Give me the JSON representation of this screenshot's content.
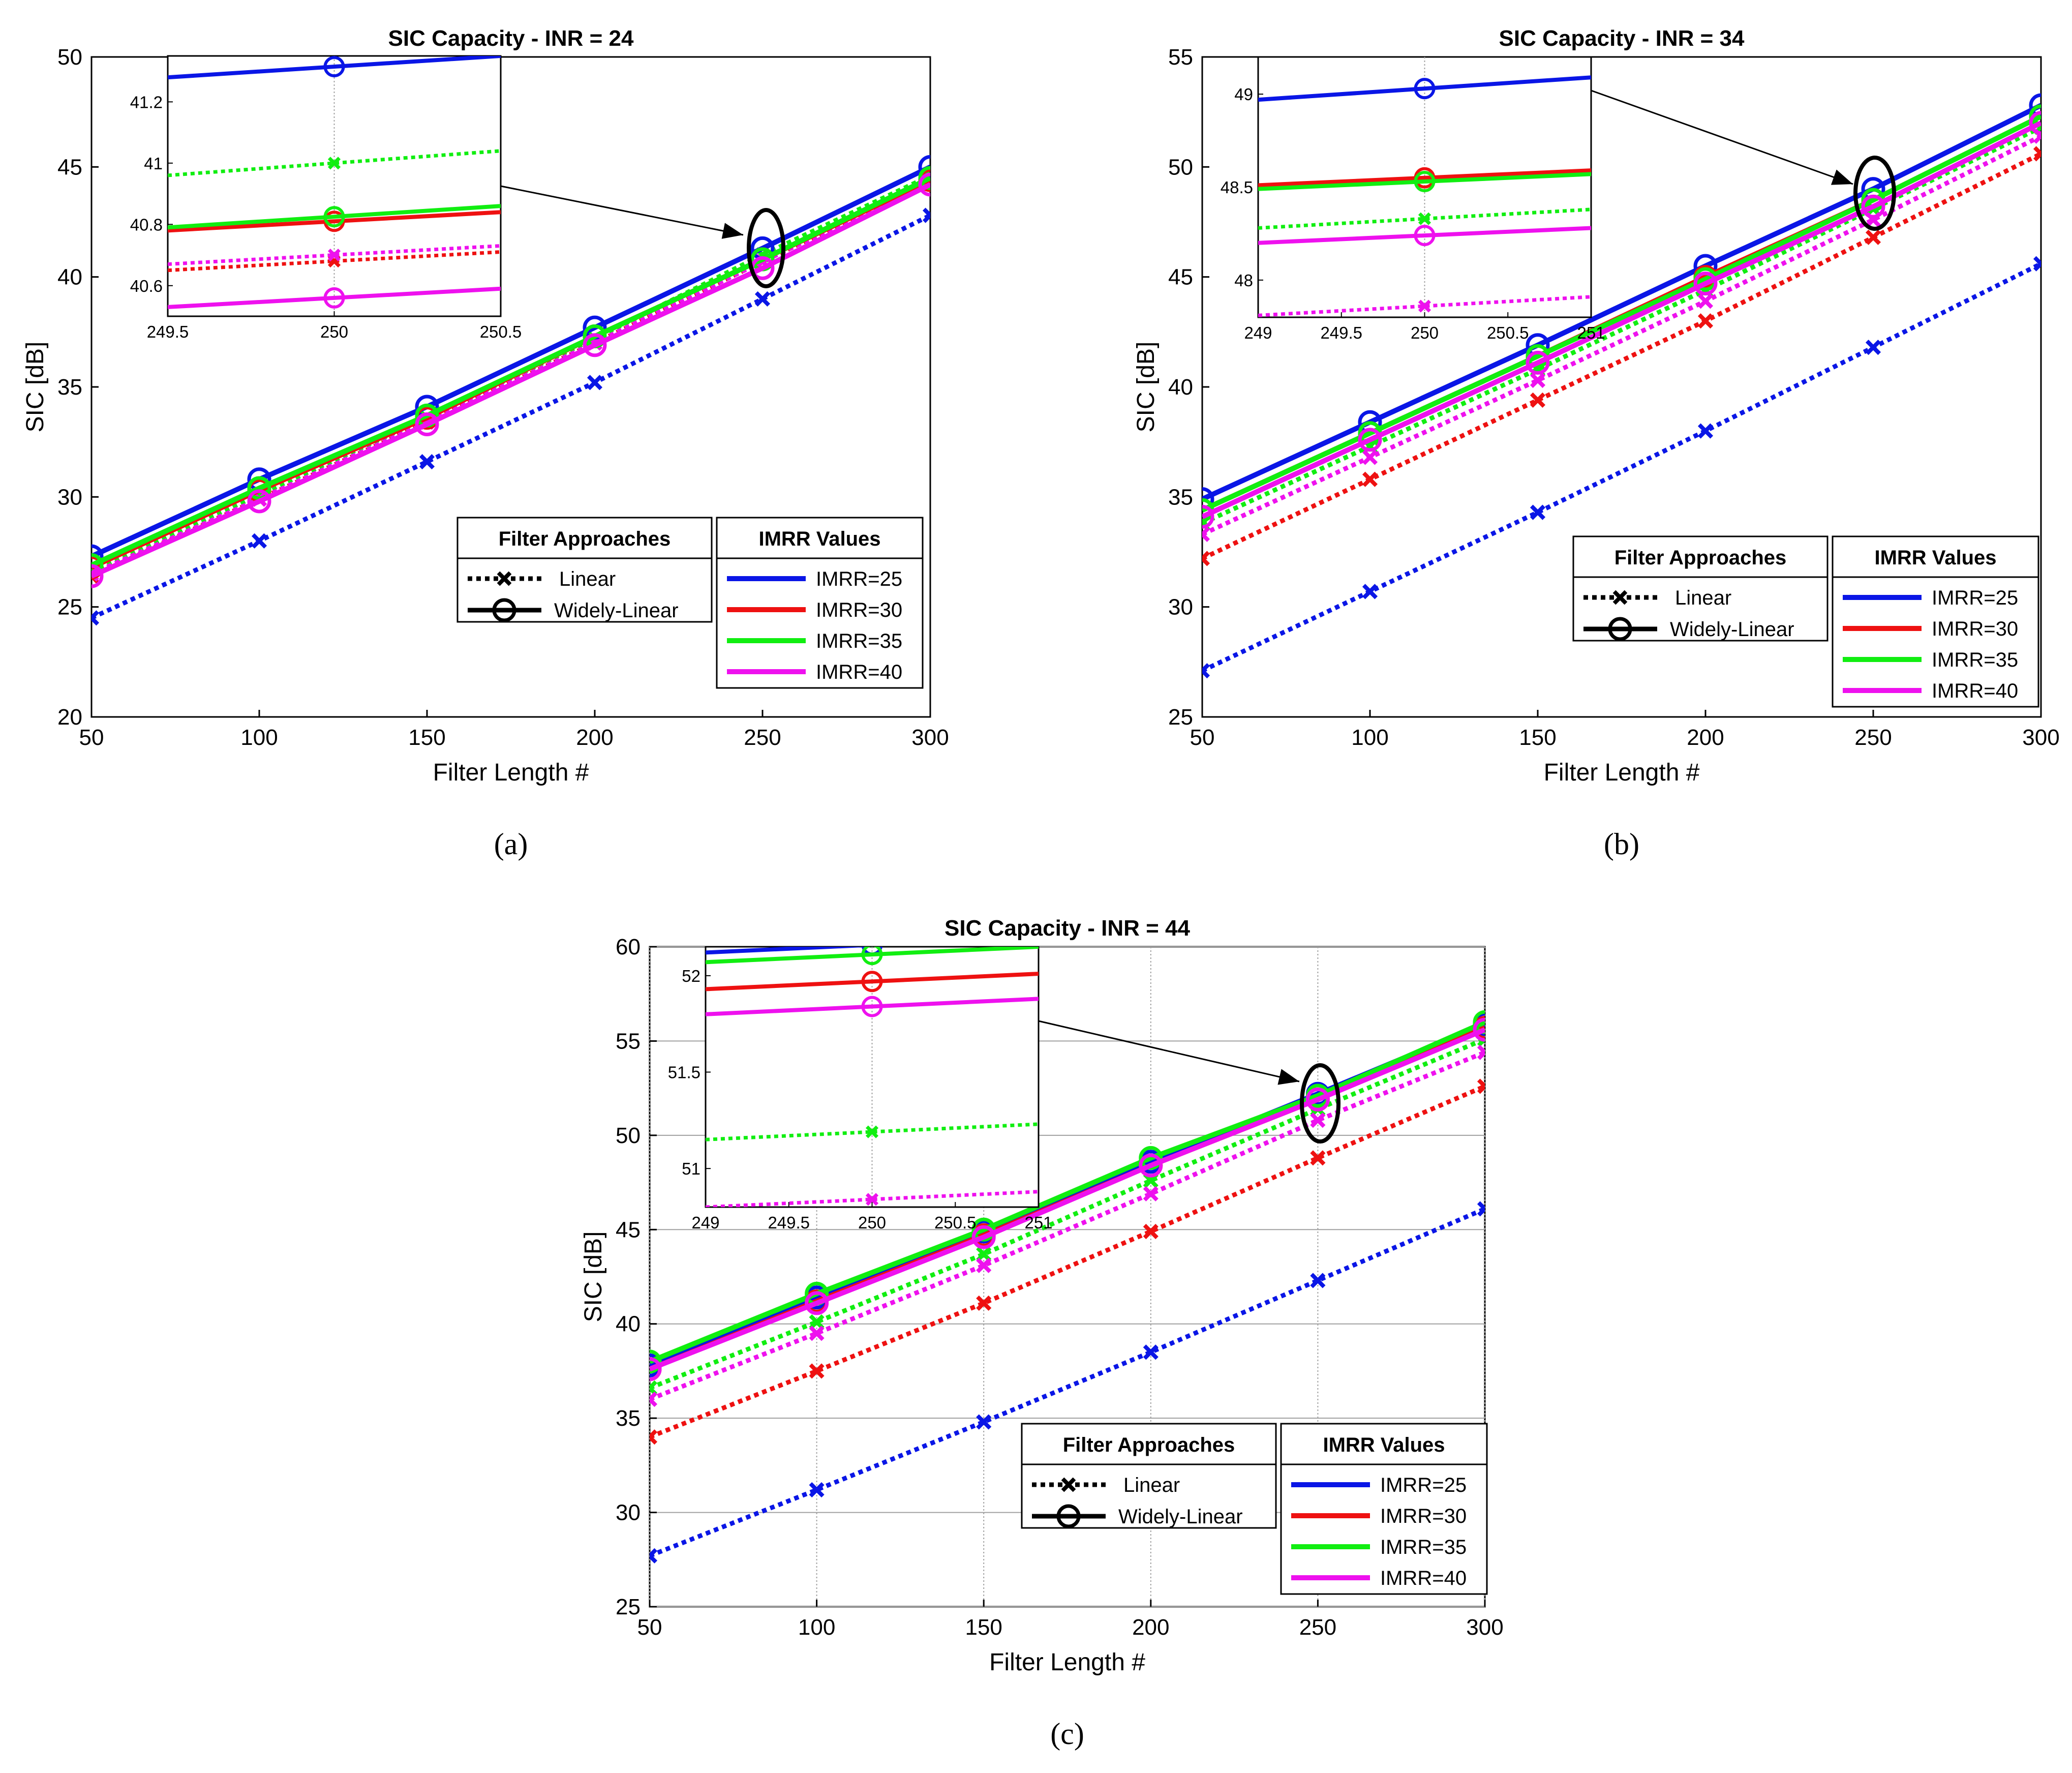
{
  "chart_data": [
    {
      "id": "a",
      "type": "line",
      "title": "SIC Capacity - INR = 24",
      "xlabel": "Filter Length #",
      "ylabel": "SIC [dB]",
      "caption": "(a)",
      "x": [
        50,
        100,
        150,
        200,
        250,
        300
      ],
      "xlim": [
        50,
        300
      ],
      "ylim": [
        20,
        50
      ],
      "xticks": [
        "50",
        "100",
        "150",
        "200",
        "250",
        "300"
      ],
      "yticks": [
        "20",
        "25",
        "30",
        "35",
        "40",
        "45",
        "50"
      ],
      "grid": false,
      "series": [
        {
          "name": "IMRR=25 Widely-Linear",
          "imrr": "IMRR=25",
          "approach": "Widely-Linear",
          "values": [
            27.3,
            30.8,
            34.1,
            37.7,
            41.3,
            45.0
          ]
        },
        {
          "name": "IMRR=30 Widely-Linear",
          "imrr": "IMRR=30",
          "approach": "Widely-Linear",
          "values": [
            26.8,
            30.3,
            33.6,
            37.3,
            40.8,
            44.4
          ]
        },
        {
          "name": "IMRR=35 Widely-Linear",
          "imrr": "IMRR=35",
          "approach": "Widely-Linear",
          "values": [
            26.9,
            30.4,
            33.7,
            37.3,
            40.8,
            44.5
          ]
        },
        {
          "name": "IMRR=40 Widely-Linear",
          "imrr": "IMRR=40",
          "approach": "Widely-Linear",
          "values": [
            26.4,
            29.8,
            33.3,
            36.9,
            40.4,
            44.2
          ]
        },
        {
          "name": "IMRR=25 Linear",
          "imrr": "IMRR=25",
          "approach": "Linear",
          "values": [
            24.5,
            28.0,
            31.6,
            35.2,
            39.0,
            42.8
          ]
        },
        {
          "name": "IMRR=30 Linear",
          "imrr": "IMRR=30",
          "approach": "Linear",
          "values": [
            26.4,
            29.9,
            33.4,
            37.0,
            40.7,
            44.3
          ]
        },
        {
          "name": "IMRR=35 Linear",
          "imrr": "IMRR=35",
          "approach": "Linear",
          "values": [
            26.6,
            30.1,
            33.6,
            37.2,
            41.0,
            44.6
          ]
        },
        {
          "name": "IMRR=40 Linear",
          "imrr": "IMRR=40",
          "approach": "Linear",
          "values": [
            26.5,
            29.9,
            33.4,
            37.0,
            40.7,
            44.3
          ]
        }
      ],
      "inset": {
        "xlim": [
          249.5,
          250.5
        ],
        "ylim": [
          40.5,
          41.35
        ],
        "xticks": [
          "249.5",
          "250",
          "250.5"
        ],
        "yticks": [
          "40.6",
          "40.8",
          "41",
          "41.2"
        ],
        "series": [
          {
            "imrr": "IMRR=25",
            "approach": "Widely-Linear",
            "y": [
              41.28,
              41.35
            ]
          },
          {
            "imrr": "IMRR=30",
            "approach": "Widely-Linear",
            "y": [
              40.78,
              40.84
            ]
          },
          {
            "imrr": "IMRR=35",
            "approach": "Widely-Linear",
            "y": [
              40.79,
              40.86
            ]
          },
          {
            "imrr": "IMRR=40",
            "approach": "Widely-Linear",
            "y": [
              40.53,
              40.59
            ]
          },
          {
            "imrr": "IMRR=35",
            "approach": "Linear",
            "y": [
              40.96,
              41.04
            ]
          },
          {
            "imrr": "IMRR=30",
            "approach": "Linear",
            "y": [
              40.65,
              40.71
            ]
          },
          {
            "imrr": "IMRR=40",
            "approach": "Linear",
            "y": [
              40.67,
              40.73
            ]
          }
        ]
      }
    },
    {
      "id": "b",
      "type": "line",
      "title": "SIC Capacity - INR = 34",
      "xlabel": "Filter Length #",
      "ylabel": "SIC [dB]",
      "caption": "(b)",
      "x": [
        50,
        100,
        150,
        200,
        250,
        300
      ],
      "xlim": [
        50,
        300
      ],
      "ylim": [
        25,
        55
      ],
      "xticks": [
        "50",
        "100",
        "150",
        "200",
        "250",
        "300"
      ],
      "yticks": [
        "25",
        "30",
        "35",
        "40",
        "45",
        "50",
        "55"
      ],
      "grid": false,
      "series": [
        {
          "name": "IMRR=25 Widely-Linear",
          "imrr": "IMRR=25",
          "approach": "Widely-Linear",
          "values": [
            34.9,
            38.4,
            41.9,
            45.5,
            49.0,
            52.8
          ]
        },
        {
          "name": "IMRR=30 Widely-Linear",
          "imrr": "IMRR=30",
          "approach": "Widely-Linear",
          "values": [
            34.4,
            37.9,
            41.4,
            45.0,
            48.5,
            52.3
          ]
        },
        {
          "name": "IMRR=35 Widely-Linear",
          "imrr": "IMRR=35",
          "approach": "Widely-Linear",
          "values": [
            34.4,
            37.9,
            41.4,
            44.9,
            48.5,
            52.3
          ]
        },
        {
          "name": "IMRR=40 Widely-Linear",
          "imrr": "IMRR=40",
          "approach": "Widely-Linear",
          "values": [
            34.1,
            37.6,
            41.1,
            44.7,
            48.2,
            52.0
          ]
        },
        {
          "name": "IMRR=25 Linear",
          "imrr": "IMRR=25",
          "approach": "Linear",
          "values": [
            27.1,
            30.7,
            34.3,
            38.0,
            41.8,
            45.6
          ]
        },
        {
          "name": "IMRR=30 Linear",
          "imrr": "IMRR=30",
          "approach": "Linear",
          "values": [
            32.2,
            35.8,
            39.4,
            43.0,
            46.8,
            50.6
          ]
        },
        {
          "name": "IMRR=35 Linear",
          "imrr": "IMRR=35",
          "approach": "Linear",
          "values": [
            33.8,
            37.3,
            40.8,
            44.4,
            48.1,
            51.8
          ]
        },
        {
          "name": "IMRR=40 Linear",
          "imrr": "IMRR=40",
          "approach": "Linear",
          "values": [
            33.3,
            36.8,
            40.3,
            43.9,
            47.6,
            51.4
          ]
        }
      ],
      "inset": {
        "xlim": [
          249,
          251
        ],
        "ylim": [
          47.8,
          49.2
        ],
        "xticks": [
          "249",
          "249.5",
          "250",
          "250.5",
          "251"
        ],
        "yticks": [
          "48",
          "48.5",
          "49"
        ],
        "series": [
          {
            "imrr": "IMRR=25",
            "approach": "Widely-Linear",
            "y": [
              48.97,
              49.09
            ]
          },
          {
            "imrr": "IMRR=30",
            "approach": "Widely-Linear",
            "y": [
              48.51,
              48.59
            ]
          },
          {
            "imrr": "IMRR=35",
            "approach": "Widely-Linear",
            "y": [
              48.49,
              48.57
            ]
          },
          {
            "imrr": "IMRR=40",
            "approach": "Widely-Linear",
            "y": [
              48.2,
              48.28
            ]
          },
          {
            "imrr": "IMRR=35",
            "approach": "Linear",
            "y": [
              48.28,
              48.38
            ]
          },
          {
            "imrr": "IMRR=40",
            "approach": "Linear",
            "y": [
              47.81,
              47.91
            ]
          }
        ]
      }
    },
    {
      "id": "c",
      "type": "line",
      "title": "SIC Capacity - INR = 44",
      "xlabel": "Filter Length #",
      "ylabel": "SIC [dB]",
      "caption": "(c)",
      "x": [
        50,
        100,
        150,
        200,
        250,
        300
      ],
      "xlim": [
        50,
        300
      ],
      "ylim": [
        25,
        60
      ],
      "xticks": [
        "50",
        "100",
        "150",
        "200",
        "250",
        "300"
      ],
      "yticks": [
        "25",
        "30",
        "35",
        "40",
        "45",
        "50",
        "55",
        "60"
      ],
      "grid": true,
      "series": [
        {
          "name": "IMRR=25 Widely-Linear",
          "imrr": "IMRR=25",
          "approach": "Widely-Linear",
          "values": [
            37.8,
            41.4,
            44.9,
            48.6,
            52.2,
            55.9
          ]
        },
        {
          "name": "IMRR=30 Widely-Linear",
          "imrr": "IMRR=30",
          "approach": "Widely-Linear",
          "values": [
            37.6,
            41.2,
            44.7,
            48.4,
            51.9,
            55.7
          ]
        },
        {
          "name": "IMRR=35 Widely-Linear",
          "imrr": "IMRR=35",
          "approach": "Widely-Linear",
          "values": [
            38.0,
            41.6,
            45.0,
            48.8,
            52.1,
            56.0
          ]
        },
        {
          "name": "IMRR=40 Widely-Linear",
          "imrr": "IMRR=40",
          "approach": "Widely-Linear",
          "values": [
            37.6,
            41.1,
            44.6,
            48.4,
            51.9,
            55.6
          ]
        },
        {
          "name": "IMRR=25 Linear",
          "imrr": "IMRR=25",
          "approach": "Linear",
          "values": [
            27.7,
            31.2,
            34.8,
            38.5,
            42.3,
            46.1
          ]
        },
        {
          "name": "IMRR=30 Linear",
          "imrr": "IMRR=30",
          "approach": "Linear",
          "values": [
            34.0,
            37.5,
            41.1,
            44.9,
            48.8,
            52.6
          ]
        },
        {
          "name": "IMRR=35 Linear",
          "imrr": "IMRR=35",
          "approach": "Linear",
          "values": [
            36.6,
            40.1,
            43.7,
            47.6,
            51.4,
            55.1
          ]
        },
        {
          "name": "IMRR=40 Linear",
          "imrr": "IMRR=40",
          "approach": "Linear",
          "values": [
            36.0,
            39.5,
            43.1,
            46.9,
            50.8,
            54.4
          ]
        }
      ],
      "inset": {
        "xlim": [
          249,
          251
        ],
        "ylim": [
          50.8,
          52.15
        ],
        "xticks": [
          "249",
          "249.5",
          "250",
          "250.5",
          "251"
        ],
        "yticks": [
          "51",
          "51.5",
          "52"
        ],
        "series": [
          {
            "imrr": "IMRR=25",
            "approach": "Widely-Linear",
            "y": [
              52.12,
              52.2
            ]
          },
          {
            "imrr": "IMRR=35",
            "approach": "Widely-Linear",
            "y": [
              52.07,
              52.15
            ]
          },
          {
            "imrr": "IMRR=30",
            "approach": "Widely-Linear",
            "y": [
              51.93,
              52.01
            ]
          },
          {
            "imrr": "IMRR=40",
            "approach": "Widely-Linear",
            "y": [
              51.8,
              51.88
            ]
          },
          {
            "imrr": "IMRR=35",
            "approach": "Linear",
            "y": [
              51.15,
              51.23
            ]
          },
          {
            "imrr": "IMRR=40",
            "approach": "Linear",
            "y": [
              50.8,
              50.88
            ]
          }
        ]
      }
    }
  ],
  "legend": {
    "approaches_title": "Filter Approaches",
    "approaches": [
      "Linear",
      "Widely-Linear"
    ],
    "imrr_title": "IMRR Values",
    "imrr": [
      "IMRR=25",
      "IMRR=30",
      "IMRR=35",
      "IMRR=40"
    ]
  },
  "colors": {
    "IMRR=25": "#0a16e6",
    "IMRR=30": "#ee1111",
    "IMRR=35": "#11ee11",
    "IMRR=40": "#ee11ee",
    "axis": "#000000",
    "grid": "#a0a0a0"
  }
}
